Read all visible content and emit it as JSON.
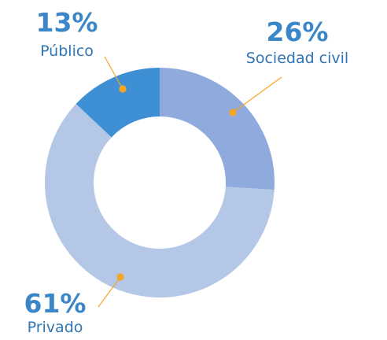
{
  "chart_data": {
    "type": "donut",
    "categories": [
      "Sociedad civil",
      "Privado",
      "Público"
    ],
    "values": [
      26,
      61,
      13
    ],
    "value_labels": [
      "26%",
      "61%",
      "13%"
    ],
    "colors": [
      "#8faadc",
      "#b4c7e7",
      "#3f8fd4"
    ]
  }
}
